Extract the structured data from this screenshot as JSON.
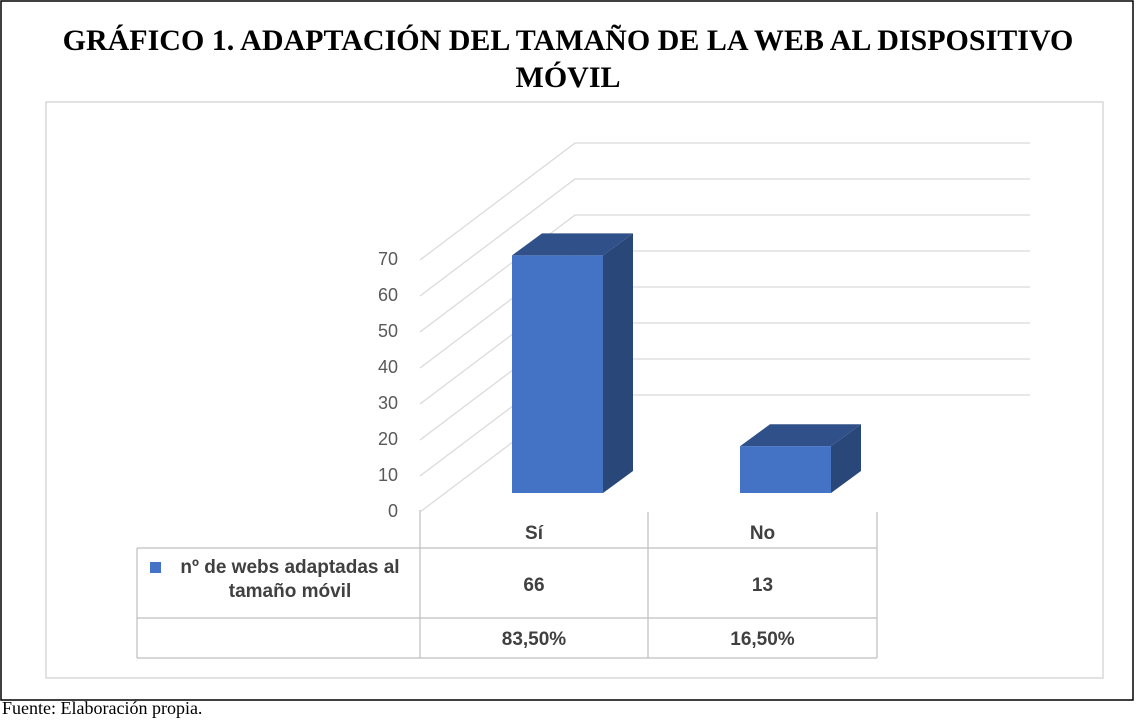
{
  "chart_data": {
    "type": "bar",
    "title": "GRÁFICO 1. ADAPTACIÓN DEL TAMAÑO DE LA WEB AL DISPOSITIVO MÓVIL",
    "categories": [
      "Sí",
      "No"
    ],
    "series": [
      {
        "name": "nº de webs adaptadas al tamaño móvil",
        "color": "#4472c4",
        "values": [
          66,
          13
        ]
      }
    ],
    "percent_row": [
      "83,50%",
      "16,50%"
    ],
    "ylim": [
      0,
      70
    ],
    "yticks": [
      0,
      10,
      20,
      30,
      40,
      50,
      60,
      70
    ],
    "grid": true,
    "source": "Fuente: Elaboración propia."
  }
}
